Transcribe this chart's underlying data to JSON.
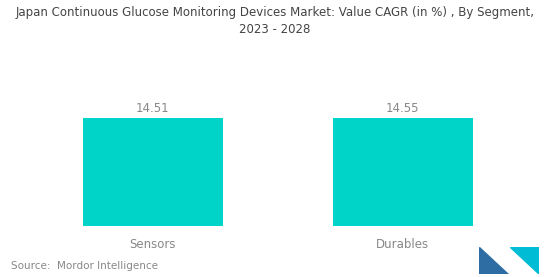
{
  "title_line1": "Japan Continuous Glucose Monitoring Devices Market: Value CAGR (in %) , By Segment,",
  "title_line2": "2023 - 2028",
  "categories": [
    "Sensors",
    "Durables"
  ],
  "values": [
    14.51,
    14.55
  ],
  "bar_color": "#00D4C8",
  "bar_width": 0.28,
  "value_labels": [
    "14.51",
    "14.55"
  ],
  "source_text": "Source:  Mordor Intelligence",
  "background_color": "#ffffff",
  "title_fontsize": 8.5,
  "label_fontsize": 8.5,
  "value_fontsize": 8.5,
  "source_fontsize": 7.5,
  "logo_left_color": "#2E6DA4",
  "logo_right_color": "#00BCD4"
}
